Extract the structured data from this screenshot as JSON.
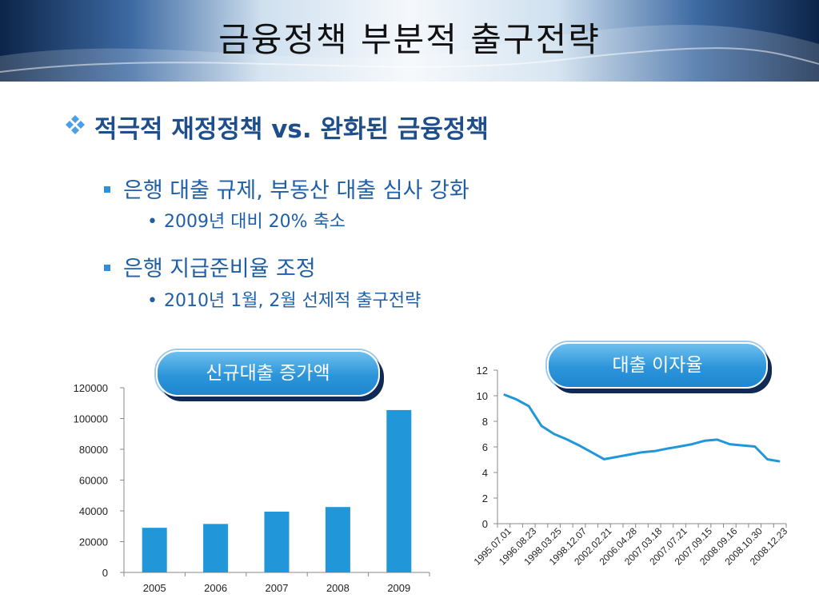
{
  "slide": {
    "title": "금융정책 부분적 출구전략",
    "main_bullet": "적극적 재정정책 vs. 완화된 금융정책",
    "sub_bullets": [
      {
        "text": "은행 대출 규제, 부동산 대출 심사 강화",
        "detail": "2009년 대비 20% 축소"
      },
      {
        "text": "은행 지급준비율 조정",
        "detail": "2010년 1월, 2월 선제적 출구전략"
      }
    ]
  },
  "colors": {
    "accent": "#2196d8",
    "line": "#2196d8",
    "title_text": "#111111",
    "bullet_text": "#1f5fa8"
  },
  "chart_data": [
    {
      "type": "bar",
      "label_button": "신규대출 증가액",
      "categories": [
        "2005",
        "2006",
        "2007",
        "2008",
        "2009"
      ],
      "values": [
        29000,
        31500,
        39500,
        42500,
        105500
      ],
      "ylim": [
        0,
        120000
      ],
      "yticks": [
        0,
        20000,
        40000,
        60000,
        80000,
        100000,
        120000
      ],
      "grid": false,
      "title": "",
      "xlabel": "",
      "ylabel": ""
    },
    {
      "type": "line",
      "label_button": "대출 이자율",
      "x_tick_labels": [
        "1995.07.01",
        "1996.08.23",
        "1998.03.25",
        "1998.12.07",
        "2002.02.21",
        "2006.04.28",
        "2007.03.18",
        "2007.07.21",
        "2007.09.15",
        "2008.09.16",
        "2008.10.30",
        "2008.12.23"
      ],
      "values": [
        10.1,
        9.72,
        9.18,
        7.65,
        7.02,
        6.6,
        6.12,
        5.58,
        5.04,
        5.22,
        5.4,
        5.58,
        5.67,
        5.86,
        6.03,
        6.21,
        6.48,
        6.57,
        6.21,
        6.12,
        6.03,
        5.03,
        4.86
      ],
      "ylim": [
        0,
        12
      ],
      "yticks": [
        0,
        2,
        4,
        6,
        8,
        10,
        12
      ],
      "grid": false,
      "title": "",
      "xlabel": "",
      "ylabel": ""
    }
  ]
}
